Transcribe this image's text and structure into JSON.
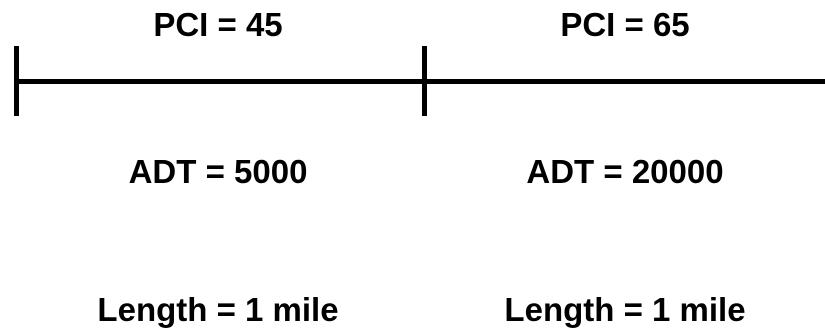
{
  "segments": [
    {
      "pci": "PCI = 45",
      "adt": "ADT = 5000",
      "length": "Length = 1 mile"
    },
    {
      "pci": "PCI = 65",
      "adt": "ADT = 20000",
      "length": "Length = 1 mile"
    }
  ],
  "colors": {
    "line": "#000000",
    "text": "#000000",
    "background": "#ffffff"
  }
}
